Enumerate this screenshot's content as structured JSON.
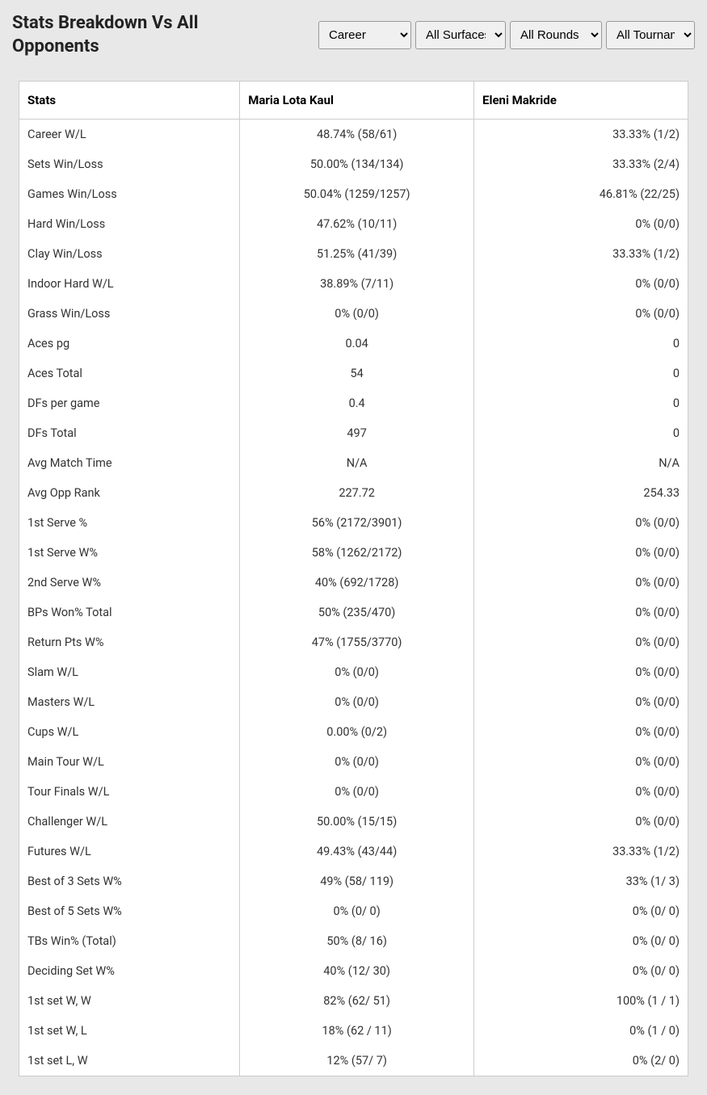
{
  "title": "Stats Breakdown Vs All Opponents",
  "filters": {
    "career": {
      "selected": "Career",
      "options": [
        "Career"
      ]
    },
    "surface": {
      "selected": "All Surfaces",
      "options": [
        "All Surfaces"
      ]
    },
    "rounds": {
      "selected": "All Rounds",
      "options": [
        "All Rounds"
      ]
    },
    "tournaments": {
      "selected": "All Tournaments",
      "options": [
        "All Tournaments"
      ]
    }
  },
  "table": {
    "headers": {
      "stats": "Stats",
      "player1": "Maria Lota Kaul",
      "player2": "Eleni Makride"
    },
    "rows": [
      {
        "stat": "Career W/L",
        "p1": "48.74% (58/61)",
        "p2": "33.33% (1/2)"
      },
      {
        "stat": "Sets Win/Loss",
        "p1": "50.00% (134/134)",
        "p2": "33.33% (2/4)"
      },
      {
        "stat": "Games Win/Loss",
        "p1": "50.04% (1259/1257)",
        "p2": "46.81% (22/25)"
      },
      {
        "stat": "Hard Win/Loss",
        "p1": "47.62% (10/11)",
        "p2": "0% (0/0)"
      },
      {
        "stat": "Clay Win/Loss",
        "p1": "51.25% (41/39)",
        "p2": "33.33% (1/2)"
      },
      {
        "stat": "Indoor Hard W/L",
        "p1": "38.89% (7/11)",
        "p2": "0% (0/0)"
      },
      {
        "stat": "Grass Win/Loss",
        "p1": "0% (0/0)",
        "p2": "0% (0/0)"
      },
      {
        "stat": "Aces pg",
        "p1": "0.04",
        "p2": "0"
      },
      {
        "stat": "Aces Total",
        "p1": "54",
        "p2": "0"
      },
      {
        "stat": "DFs per game",
        "p1": "0.4",
        "p2": "0"
      },
      {
        "stat": "DFs Total",
        "p1": "497",
        "p2": "0"
      },
      {
        "stat": "Avg Match Time",
        "p1": "N/A",
        "p2": "N/A"
      },
      {
        "stat": "Avg Opp Rank",
        "p1": "227.72",
        "p2": "254.33"
      },
      {
        "stat": "1st Serve %",
        "p1": "56% (2172/3901)",
        "p2": "0% (0/0)"
      },
      {
        "stat": "1st Serve W%",
        "p1": "58% (1262/2172)",
        "p2": "0% (0/0)"
      },
      {
        "stat": "2nd Serve W%",
        "p1": "40% (692/1728)",
        "p2": "0% (0/0)"
      },
      {
        "stat": "BPs Won% Total",
        "p1": "50% (235/470)",
        "p2": "0% (0/0)"
      },
      {
        "stat": "Return Pts W%",
        "p1": "47% (1755/3770)",
        "p2": "0% (0/0)"
      },
      {
        "stat": "Slam W/L",
        "p1": "0% (0/0)",
        "p2": "0% (0/0)"
      },
      {
        "stat": "Masters W/L",
        "p1": "0% (0/0)",
        "p2": "0% (0/0)"
      },
      {
        "stat": "Cups W/L",
        "p1": "0.00% (0/2)",
        "p2": "0% (0/0)"
      },
      {
        "stat": "Main Tour W/L",
        "p1": "0% (0/0)",
        "p2": "0% (0/0)"
      },
      {
        "stat": "Tour Finals W/L",
        "p1": "0% (0/0)",
        "p2": "0% (0/0)"
      },
      {
        "stat": "Challenger W/L",
        "p1": "50.00% (15/15)",
        "p2": "0% (0/0)"
      },
      {
        "stat": "Futures W/L",
        "p1": "49.43% (43/44)",
        "p2": "33.33% (1/2)"
      },
      {
        "stat": "Best of 3 Sets W%",
        "p1": "49% (58/ 119)",
        "p2": "33% (1/ 3)"
      },
      {
        "stat": "Best of 5 Sets W%",
        "p1": "0% (0/ 0)",
        "p2": "0% (0/ 0)"
      },
      {
        "stat": "TBs Win% (Total)",
        "p1": "50% (8/ 16)",
        "p2": "0% (0/ 0)"
      },
      {
        "stat": "Deciding Set W%",
        "p1": "40% (12/ 30)",
        "p2": "0% (0/ 0)"
      },
      {
        "stat": "1st set W, W",
        "p1": "82% (62/ 51)",
        "p2": "100% (1 / 1)"
      },
      {
        "stat": "1st set W, L",
        "p1": "18% (62 / 11)",
        "p2": "0% (1 / 0)"
      },
      {
        "stat": "1st set L, W",
        "p1": "12% (57/ 7)",
        "p2": "0% (2/ 0)"
      }
    ]
  },
  "colors": {
    "background": "#e8e8e8",
    "table_background": "#ffffff",
    "border": "#cccccc",
    "text": "#333333"
  }
}
